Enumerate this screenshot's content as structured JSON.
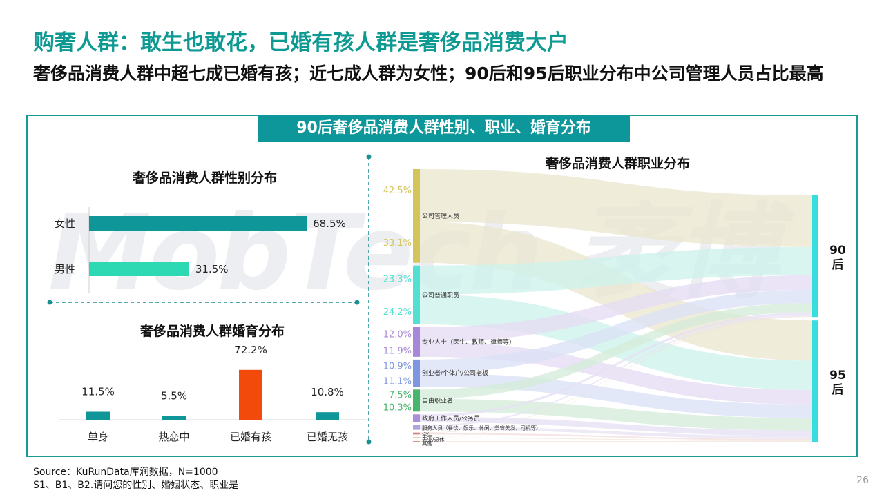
{
  "title": "购奢人群：敢生也敢花，已婚有孩人群是奢侈品消费大户",
  "subtitle": "奢侈品消费人群中超七成已婚有孩；近七成人群为女性；90后和95后职业分布中公司管理人员占比最高",
  "banner": "90后奢侈品消费人群性别、职业、婚育分布",
  "watermark": "MobTech 袤博",
  "source_line1": "Source：KuRunData库润数据，N=1000",
  "source_line2": "S1、B1、B2.请问您的性别、婚姻状态、职业是",
  "page_number": "26",
  "colors": {
    "teal_dark": "#0e9699",
    "teal_light": "#2dd9b3",
    "orange": "#f24a0b",
    "title_teal": "#0e9a93"
  },
  "chart_data": [
    {
      "type": "bar",
      "orientation": "horizontal",
      "title": "奢侈品消费人群性别分布",
      "categories": [
        "女性",
        "男性"
      ],
      "values": [
        68.5,
        31.5
      ],
      "value_labels": [
        "68.5%",
        "31.5%"
      ],
      "colors": [
        "#0e9699",
        "#2dd9b3"
      ],
      "xlim": [
        0,
        100
      ]
    },
    {
      "type": "bar",
      "title": "奢侈品消费人群婚育分布",
      "categories": [
        "单身",
        "热恋中",
        "已婚有孩",
        "已婚无孩"
      ],
      "values": [
        11.5,
        5.5,
        72.2,
        10.8
      ],
      "value_labels": [
        "11.5%",
        "5.5%",
        "72.2%",
        "10.8%"
      ],
      "colors": [
        "#0e9699",
        "#0e9699",
        "#f24a0b",
        "#0e9699"
      ],
      "ylim": [
        0,
        100
      ]
    },
    {
      "type": "sankey",
      "title": "奢侈品消费人群职业分布",
      "targets": [
        "90后",
        "95后"
      ],
      "target_color": "#38dde0",
      "sources": [
        {
          "name": "公司管理人员",
          "values": [
            42.5,
            33.1
          ],
          "labels": [
            "42.5%",
            "33.1%"
          ],
          "color": "#d3c55a",
          "link": "#ece7cf"
        },
        {
          "name": "公司普通职员",
          "values": [
            23.3,
            24.2
          ],
          "labels": [
            "23.3%",
            "24.2%"
          ],
          "color": "#53e0d2",
          "link": "#cdf2ec"
        },
        {
          "name": "专业人士（医生、教师、律师等）",
          "values": [
            12.0,
            11.9
          ],
          "labels": [
            "12.0%",
            "11.9%"
          ],
          "color": "#a788d8",
          "link": "#e4dcf3"
        },
        {
          "name": "创业者/个体户/公司老板",
          "values": [
            10.9,
            11.1
          ],
          "labels": [
            "10.9%",
            "11.1%"
          ],
          "color": "#7f95e1",
          "link": "#dbe2f6"
        },
        {
          "name": "自由职业者",
          "values": [
            7.5,
            10.3
          ],
          "labels": [
            "7.5%",
            "10.3%"
          ],
          "color": "#49b46c",
          "link": "#d4ecd9"
        },
        {
          "name": "政府工作人员/公务员",
          "values": [
            2.0,
            4.5
          ],
          "labels": [
            "",
            ""
          ],
          "color": "#a98edb",
          "link": "#e7e0f3"
        },
        {
          "name": "服务人员（餐饮、娱乐、休闲、美容美发、司机等）",
          "values": [
            1.2,
            2.5
          ],
          "labels": [
            "",
            ""
          ],
          "color": "#b2a4da",
          "link": "#e8e4f3"
        },
        {
          "name": "学生",
          "values": [
            0.4,
            1.2
          ],
          "labels": [
            "",
            ""
          ],
          "color": "#d38a8a",
          "link": "#f3dede"
        },
        {
          "name": "无业/退休",
          "values": [
            0.2,
            0.6
          ],
          "labels": [
            "",
            ""
          ],
          "color": "#c9a27a",
          "link": "#f1e5d8"
        },
        {
          "name": "其他",
          "values": [
            0.1,
            0.5
          ],
          "labels": [
            "",
            ""
          ],
          "color": "#d79a86",
          "link": "#f3e1da"
        }
      ]
    }
  ]
}
